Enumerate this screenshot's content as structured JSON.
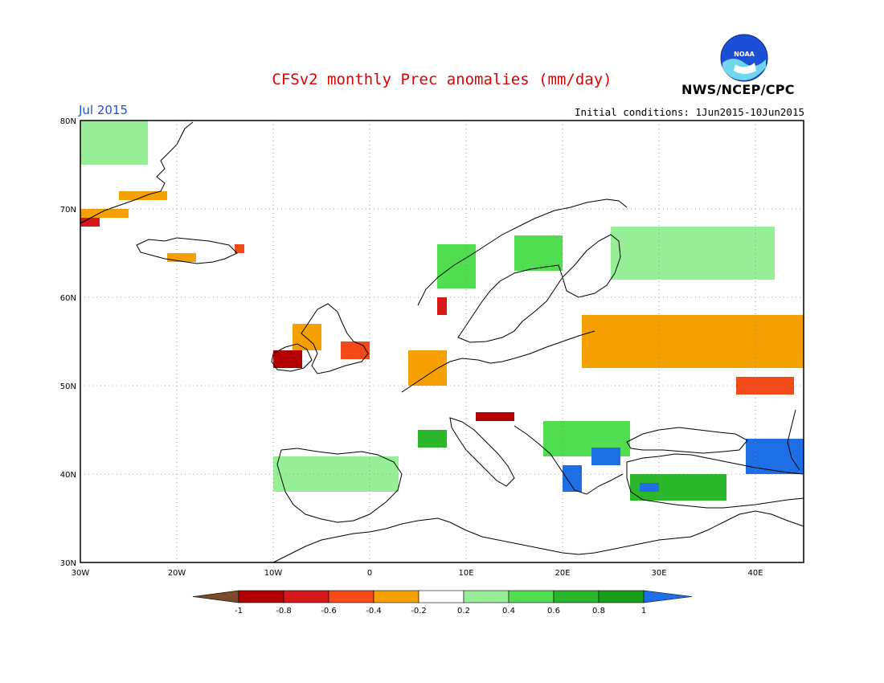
{
  "title": "CFSv2 monthly Prec anomalies (mm/day)",
  "month": "Jul 2015",
  "initial_conditions": "Initial conditions: 1Jun2015-10Jun2015",
  "agency": "NWS/NCEP/CPC",
  "logo_text": "NOAA",
  "axes": {
    "lon_labels": [
      "30W",
      "20W",
      "10W",
      "0",
      "10E",
      "20E",
      "30E",
      "40E"
    ],
    "lat_labels": [
      "80N",
      "70N",
      "60N",
      "50N",
      "40N",
      "30N"
    ],
    "lon_range": [
      -30,
      45
    ],
    "lat_range": [
      30,
      80
    ]
  },
  "colorbar": {
    "labels": [
      "-1",
      "-0.8",
      "-0.6",
      "-0.4",
      "-0.2",
      "0.2",
      "0.4",
      "0.6",
      "0.8",
      "1"
    ],
    "colors": {
      "below_-1": "#7a4a2a",
      "-1_-0.8": "#b40000",
      "-0.8_-0.6": "#d71818",
      "-0.6_-0.4": "#f44a1a",
      "-0.4_-0.2": "#f5a000",
      "-0.2_0.2": "#ffffff",
      "0.2_0.4": "#96ef96",
      "0.4_0.6": "#50dd50",
      "0.6_0.8": "#2ab82a",
      "0.8_1": "#17a017",
      "above_1": "#1e6ee6"
    }
  },
  "chart_data": {
    "type": "heatmap",
    "title": "CFSv2 monthly Prec anomalies (mm/day)",
    "units": "mm/day",
    "value_range": [
      -1,
      1
    ],
    "lon_range": [
      -30,
      45
    ],
    "lat_range": [
      30,
      80
    ],
    "regions": [
      {
        "lon": [
          -30,
          -23
        ],
        "lat": [
          75,
          80
        ],
        "value": 0.3
      },
      {
        "lon": [
          -30,
          -25
        ],
        "lat": [
          69,
          70
        ],
        "value": -0.3
      },
      {
        "lon": [
          -26,
          -21
        ],
        "lat": [
          71,
          72
        ],
        "value": -0.3
      },
      {
        "lon": [
          -30,
          -28
        ],
        "lat": [
          68,
          69
        ],
        "value": -0.7
      },
      {
        "lon": [
          -21,
          -18
        ],
        "lat": [
          64,
          65
        ],
        "value": -0.3
      },
      {
        "lon": [
          -14,
          -13
        ],
        "lat": [
          65,
          66
        ],
        "value": -0.5
      },
      {
        "lon": [
          -10,
          -7
        ],
        "lat": [
          52,
          54
        ],
        "value": -0.9
      },
      {
        "lon": [
          -8,
          -5
        ],
        "lat": [
          54,
          57
        ],
        "value": -0.3
      },
      {
        "lon": [
          -3,
          0
        ],
        "lat": [
          53,
          55
        ],
        "value": -0.5
      },
      {
        "lon": [
          4,
          8
        ],
        "lat": [
          50,
          54
        ],
        "value": -0.3
      },
      {
        "lon": [
          7,
          8
        ],
        "lat": [
          58,
          60
        ],
        "value": -0.7
      },
      {
        "lon": [
          7,
          11
        ],
        "lat": [
          61,
          66
        ],
        "value": 0.4
      },
      {
        "lon": [
          15,
          20
        ],
        "lat": [
          63,
          67
        ],
        "value": 0.4
      },
      {
        "lon": [
          26,
          38
        ],
        "lat": [
          55,
          57
        ],
        "value": -0.5
      },
      {
        "lon": [
          22,
          45
        ],
        "lat": [
          52,
          58
        ],
        "value": -0.3
      },
      {
        "lon": [
          38,
          44
        ],
        "lat": [
          49,
          51
        ],
        "value": -0.5
      },
      {
        "lon": [
          11,
          15
        ],
        "lat": [
          46,
          47
        ],
        "value": -0.9
      },
      {
        "lon": [
          5,
          8
        ],
        "lat": [
          43,
          45
        ],
        "value": 0.7
      },
      {
        "lon": [
          18,
          27
        ],
        "lat": [
          42,
          46
        ],
        "value": 0.5
      },
      {
        "lon": [
          23,
          26
        ],
        "lat": [
          41,
          43
        ],
        "value": 1.0
      },
      {
        "lon": [
          20,
          22
        ],
        "lat": [
          38,
          41
        ],
        "value": 1.0
      },
      {
        "lon": [
          27,
          37
        ],
        "lat": [
          37,
          40
        ],
        "value": 0.6
      },
      {
        "lon": [
          28,
          30
        ],
        "lat": [
          38,
          39
        ],
        "value": 1.0
      },
      {
        "lon": [
          39,
          45
        ],
        "lat": [
          40,
          44
        ],
        "value": 1.0
      },
      {
        "lon": [
          -10,
          3
        ],
        "lat": [
          38,
          42
        ],
        "value": 0.3
      },
      {
        "lon": [
          25,
          42
        ],
        "lat": [
          62,
          68
        ],
        "value": 0.3
      }
    ]
  }
}
